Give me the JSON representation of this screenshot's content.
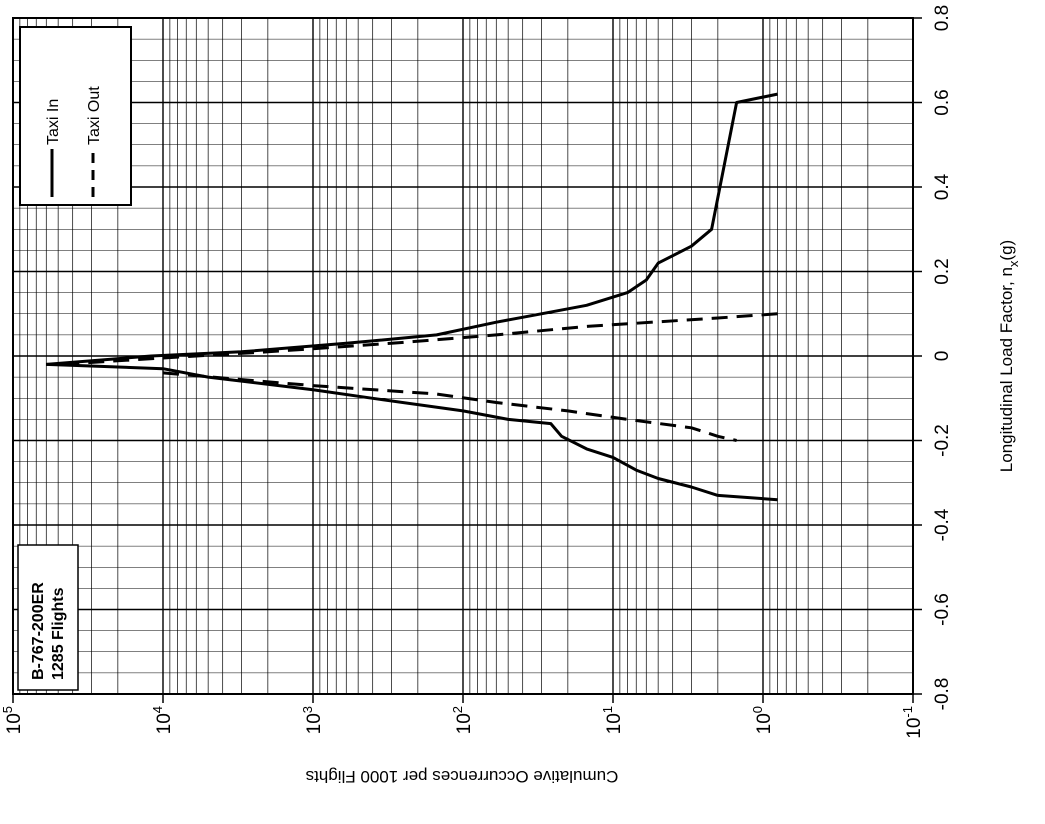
{
  "chart_data": {
    "type": "line",
    "orientation": "rotated-90-ccw",
    "x_axis": {
      "label": "Longitudinal Load Factor, n",
      "label_subscript": "x",
      "label_unit": "(g)",
      "lim": [
        -0.8,
        0.8
      ],
      "ticks": [
        -0.8,
        -0.6,
        -0.4,
        -0.2,
        0,
        0.2,
        0.4,
        0.6,
        0.8
      ],
      "tick_labels": [
        "-0.8",
        "-0.6",
        "-0.4",
        "-0.2",
        "0",
        "0.2",
        "0.4",
        "0.6",
        "0.8"
      ]
    },
    "y_axis": {
      "label": "Cumulative Occurrences per 1000 Flights",
      "scale": "log",
      "lim": [
        0.1,
        100000
      ],
      "ticks": [
        0.1,
        1,
        10,
        100,
        1000,
        10000,
        100000
      ],
      "tick_labels": [
        {
          "base": "10",
          "exp": "-1"
        },
        {
          "base": "10",
          "exp": "0"
        },
        {
          "base": "10",
          "exp": "1"
        },
        {
          "base": "10",
          "exp": "2"
        },
        {
          "base": "10",
          "exp": "3"
        },
        {
          "base": "10",
          "exp": "4"
        },
        {
          "base": "10",
          "exp": "5"
        }
      ]
    },
    "grid": true,
    "legend_position": "top-left",
    "annotation": [
      "B-767-200ER",
      "1285 Flights"
    ],
    "series": [
      {
        "name": "Taxi In",
        "style": "solid",
        "segments": [
          [
            [
              0.62,
              0.8
            ],
            [
              0.6,
              1.5
            ],
            [
              0.3,
              2.2
            ],
            [
              0.26,
              3.0
            ],
            [
              0.22,
              5.0
            ],
            [
              0.18,
              6.0
            ],
            [
              0.15,
              8.0
            ],
            [
              0.12,
              15.0
            ],
            [
              0.1,
              30.0
            ],
            [
              0.08,
              60.0
            ],
            [
              0.05,
              150.0
            ],
            [
              0.03,
              600.0
            ],
            [
              0.01,
              3000.0
            ],
            [
              0.0,
              12000.0
            ],
            [
              -0.02,
              60000.0
            ]
          ],
          [
            [
              -0.02,
              60000.0
            ],
            [
              -0.03,
              10000.0
            ],
            [
              -0.05,
              5000.0
            ],
            [
              -0.08,
              1000.0
            ],
            [
              -0.1,
              400.0
            ],
            [
              -0.13,
              100.0
            ],
            [
              -0.15,
              50.0
            ],
            [
              -0.16,
              26.0
            ],
            [
              -0.19,
              22.0
            ],
            [
              -0.22,
              15.0
            ],
            [
              -0.24,
              10.0
            ],
            [
              -0.27,
              7.0
            ],
            [
              -0.29,
              5.0
            ],
            [
              -0.31,
              3.0
            ],
            [
              -0.33,
              2.0
            ],
            [
              -0.34,
              0.8
            ]
          ]
        ]
      },
      {
        "name": "Taxi Out",
        "style": "dashed",
        "segments": [
          [
            [
              0.1,
              0.8
            ],
            [
              0.09,
              2.0
            ],
            [
              0.07,
              15.0
            ],
            [
              0.05,
              60.0
            ],
            [
              0.03,
              300.0
            ],
            [
              0.01,
              2000.0
            ],
            [
              0.0,
              6000.0
            ],
            [
              -0.02,
              50000.0
            ]
          ],
          [
            [
              -0.04,
              10000.0
            ],
            [
              -0.07,
              1000.0
            ],
            [
              -0.09,
              150.0
            ],
            [
              -0.11,
              60.0
            ],
            [
              -0.13,
              20.0
            ],
            [
              -0.15,
              8.0
            ],
            [
              -0.17,
              3.0
            ],
            [
              -0.19,
              2.0
            ],
            [
              -0.2,
              1.5
            ]
          ]
        ]
      }
    ]
  }
}
